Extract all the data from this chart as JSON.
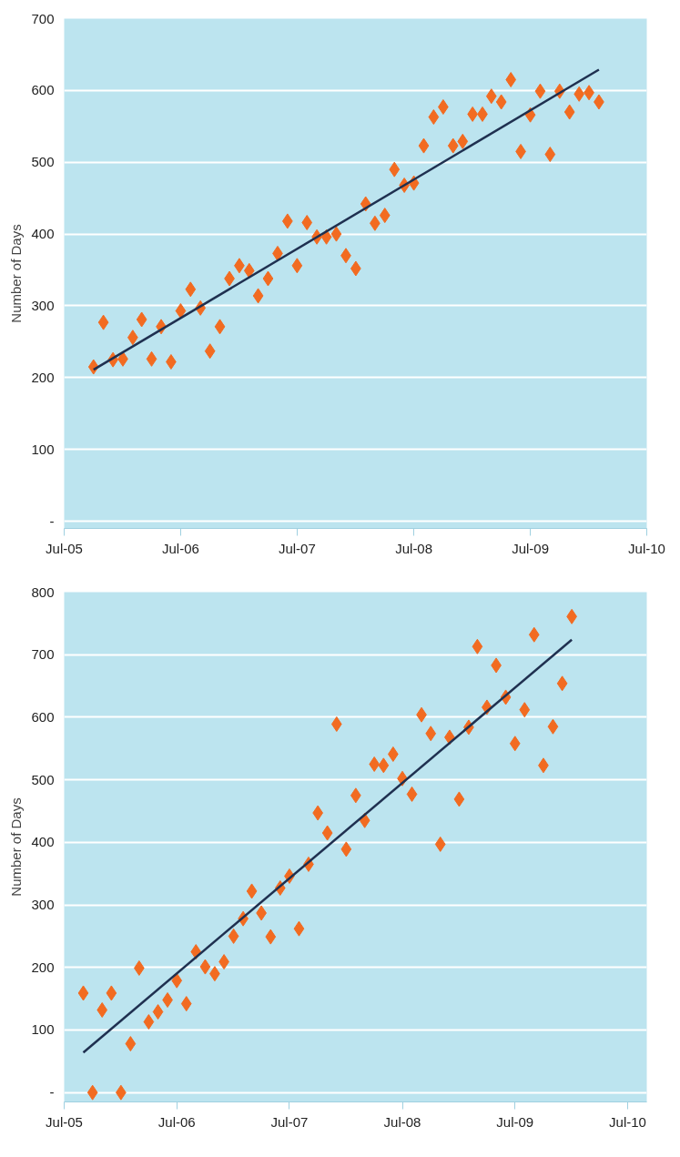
{
  "chart_data": [
    {
      "type": "scatter",
      "ylabel": "Number of Days",
      "grid": "y",
      "xlim": [
        "2005-07",
        "2010-07"
      ],
      "ylim": [
        -10,
        700
      ],
      "xticks": [
        {
          "value": "2005-07",
          "label": "Jul-05"
        },
        {
          "value": "2006-07",
          "label": "Jul-06"
        },
        {
          "value": "2007-07",
          "label": "Jul-07"
        },
        {
          "value": "2008-07",
          "label": "Jul-08"
        },
        {
          "value": "2009-07",
          "label": "Jul-09"
        },
        {
          "value": "2010-07",
          "label": "Jul-10"
        }
      ],
      "yticks": [
        {
          "value": 0,
          "label": "-"
        },
        100,
        200,
        300,
        400,
        500,
        600,
        700
      ],
      "series": [
        {
          "marker": "diamond",
          "color": "#f26b21",
          "x": [
            "2005-10",
            "2005-11",
            "2005-12",
            "2006-01",
            "2006-02",
            "2006-03",
            "2006-04",
            "2006-05",
            "2006-06",
            "2006-07",
            "2006-08",
            "2006-09",
            "2006-10",
            "2006-11",
            "2006-12",
            "2007-01",
            "2007-02",
            "2007-03",
            "2007-04",
            "2007-05",
            "2007-06",
            "2007-07",
            "2007-08",
            "2007-09",
            "2007-10",
            "2007-11",
            "2007-12",
            "2008-01",
            "2008-02",
            "2008-03",
            "2008-04",
            "2008-05",
            "2008-06",
            "2008-07",
            "2008-08",
            "2008-09",
            "2008-10",
            "2008-11",
            "2008-12",
            "2009-01",
            "2009-02",
            "2009-03",
            "2009-04",
            "2009-05",
            "2009-06",
            "2009-07",
            "2009-08",
            "2009-09",
            "2009-10",
            "2009-11",
            "2009-12",
            "2010-01",
            "2010-02"
          ],
          "values": [
            215,
            277,
            225,
            226,
            256,
            281,
            226,
            271,
            222,
            293,
            323,
            297,
            237,
            271,
            338,
            356,
            349,
            314,
            338,
            373,
            418,
            356,
            416,
            396,
            396,
            400,
            370,
            352,
            442,
            415,
            426,
            490,
            468,
            471,
            523,
            563,
            577,
            523,
            529,
            567,
            567,
            592,
            584,
            615,
            515,
            566,
            599,
            511,
            599,
            570,
            595,
            597,
            584
          ]
        },
        {
          "type": "line",
          "marker": "none",
          "color": "#1f3050",
          "x": [
            "2005-10",
            "2010-02"
          ],
          "values": [
            211,
            629
          ]
        }
      ]
    },
    {
      "type": "scatter",
      "ylabel": "Number of Days",
      "grid": "y",
      "xlim": [
        "2005-07",
        "2010-09"
      ],
      "ylim": [
        -15,
        800
      ],
      "xticks": [
        {
          "value": "2005-07",
          "label": "Jul-05"
        },
        {
          "value": "2006-07",
          "label": "Jul-06"
        },
        {
          "value": "2007-07",
          "label": "Jul-07"
        },
        {
          "value": "2008-07",
          "label": "Jul-08"
        },
        {
          "value": "2009-07",
          "label": "Jul-09"
        },
        {
          "value": "2010-07",
          "label": "Jul-10"
        }
      ],
      "yticks": [
        {
          "value": 0,
          "label": "-"
        },
        100,
        200,
        300,
        400,
        500,
        600,
        700,
        800
      ],
      "series": [
        {
          "marker": "diamond",
          "color": "#f26b21",
          "x": [
            "2005-09",
            "2005-10",
            "2005-11",
            "2005-12",
            "2006-01",
            "2006-02",
            "2006-03",
            "2006-04",
            "2006-05",
            "2006-06",
            "2006-07",
            "2006-08",
            "2006-09",
            "2006-10",
            "2006-11",
            "2006-12",
            "2007-01",
            "2007-02",
            "2007-03",
            "2007-04",
            "2007-05",
            "2007-06",
            "2007-07",
            "2007-08",
            "2007-09",
            "2007-10",
            "2007-11",
            "2007-12",
            "2008-01",
            "2008-02",
            "2008-03",
            "2008-04",
            "2008-05",
            "2008-06",
            "2008-07",
            "2008-08",
            "2008-09",
            "2008-10",
            "2008-11",
            "2008-12",
            "2009-01",
            "2009-02",
            "2009-03",
            "2009-04",
            "2009-05",
            "2009-06",
            "2009-07",
            "2009-08",
            "2009-09",
            "2009-10",
            "2009-11",
            "2009-12",
            "2010-01"
          ],
          "values": [
            159,
            0,
            132,
            159,
            0,
            78,
            199,
            113,
            129,
            148,
            179,
            142,
            225,
            201,
            190,
            209,
            250,
            278,
            322,
            287,
            249,
            327,
            346,
            262,
            365,
            447,
            415,
            589,
            389,
            475,
            435,
            525,
            523,
            541,
            502,
            477,
            604,
            574,
            397,
            568,
            469,
            584,
            713,
            616,
            683,
            632,
            558,
            612,
            732,
            523,
            585,
            654,
            761
          ]
        },
        {
          "type": "line",
          "marker": "none",
          "color": "#1f3050",
          "x": [
            "2005-09",
            "2010-01"
          ],
          "values": [
            64,
            724
          ]
        }
      ]
    }
  ]
}
